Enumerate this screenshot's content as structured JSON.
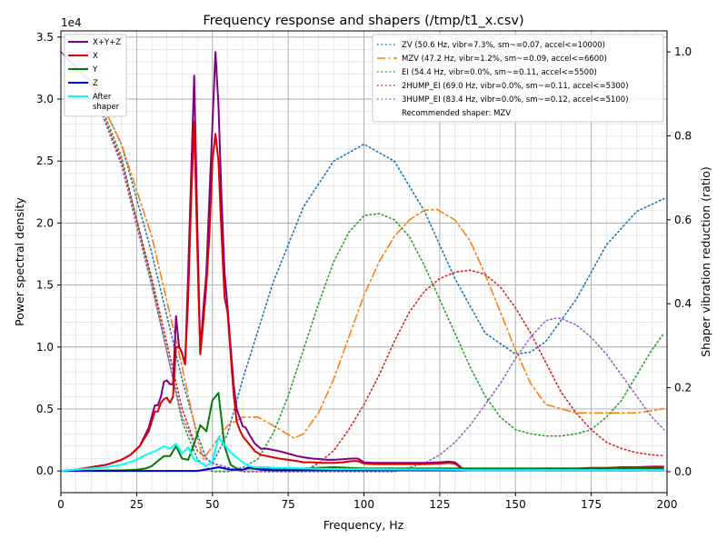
{
  "chart_data": {
    "type": "line",
    "title": "Frequency response and shapers (/tmp/t1_x.csv)",
    "xlabel": "Frequency, Hz",
    "ylabel": "Power spectral density",
    "y2label": "Shaper vibration reduction (ratio)",
    "y_offset_label": "1e4",
    "xlim": [
      0,
      200
    ],
    "ylim": [
      -1750,
      35500
    ],
    "y2lim": [
      -0.05,
      1.05
    ],
    "x_ticks": [
      0,
      25,
      50,
      75,
      100,
      125,
      150,
      175,
      200
    ],
    "y_ticks": [
      0,
      5000,
      10000,
      15000,
      20000,
      25000,
      30000,
      35000
    ],
    "y_tick_labels": [
      "0.0",
      "0.5",
      "1.0",
      "1.5",
      "2.0",
      "2.5",
      "3.0",
      "3.5"
    ],
    "y2_ticks": [
      0,
      0.2,
      0.4,
      0.6,
      0.8,
      1.0
    ],
    "y2_tick_labels": [
      "0.0",
      "0.2",
      "0.4",
      "0.6",
      "0.8",
      "1.0"
    ],
    "grid": true,
    "minor_grid": true,
    "legend_left_position": "top-left",
    "legend_right_position": "top-right",
    "psd_series": [
      {
        "name": "X+Y+Z",
        "color": "#800080",
        "width": 2,
        "legend": "X+Y+Z",
        "x": [
          0,
          5,
          10,
          15,
          20,
          23,
          26,
          29,
          31,
          32,
          33,
          34,
          35,
          36,
          37,
          38,
          39,
          40,
          41,
          42,
          43,
          44,
          45,
          46,
          47,
          48,
          49,
          50,
          51,
          52,
          53,
          54,
          55,
          56,
          57,
          58,
          59,
          60,
          61,
          62,
          64,
          66,
          68,
          70,
          72,
          75,
          78,
          80,
          83,
          86,
          88,
          90,
          93,
          96,
          98,
          100,
          103,
          106,
          110,
          115,
          120,
          125,
          128,
          130,
          133,
          135,
          140,
          145,
          150,
          155,
          160,
          165,
          170,
          175,
          180,
          185,
          190,
          195,
          199
        ],
        "y": [
          0,
          100,
          300,
          500,
          900,
          1300,
          2000,
          3500,
          5300,
          5300,
          6000,
          7200,
          7300,
          7000,
          7000,
          12500,
          10000,
          9500,
          8600,
          16000,
          24000,
          31900,
          20000,
          9500,
          13000,
          16000,
          22000,
          28000,
          33800,
          29500,
          22000,
          16000,
          13200,
          10000,
          7000,
          5000,
          4300,
          3600,
          3500,
          3000,
          2200,
          1800,
          1800,
          1700,
          1600,
          1400,
          1200,
          1100,
          1000,
          950,
          900,
          900,
          950,
          1000,
          1000,
          700,
          650,
          650,
          650,
          650,
          650,
          700,
          750,
          700,
          100,
          80,
          80,
          100,
          150,
          150,
          200,
          200,
          200,
          250,
          250,
          300,
          300,
          350,
          350
        ]
      },
      {
        "name": "X",
        "color": "#dd0000",
        "width": 2,
        "legend": "X",
        "x": [
          0,
          5,
          10,
          15,
          20,
          23,
          26,
          29,
          31,
          32,
          33,
          34,
          35,
          36,
          37,
          38,
          39,
          40,
          41,
          42,
          43,
          44,
          45,
          46,
          47,
          48,
          49,
          50,
          51,
          52,
          53,
          54,
          55,
          56,
          57,
          58,
          59,
          60,
          61,
          62,
          64,
          66,
          68,
          70,
          72,
          75,
          78,
          80,
          83,
          86,
          88,
          90,
          93,
          96,
          98,
          100,
          103,
          106,
          110,
          115,
          120,
          125,
          128,
          130,
          133,
          135,
          140,
          145,
          150,
          155,
          160,
          165,
          170,
          175,
          180,
          185,
          190,
          195,
          199
        ],
        "y": [
          0,
          100,
          300,
          500,
          900,
          1300,
          2000,
          3200,
          4800,
          4800,
          5500,
          5800,
          5900,
          5500,
          6000,
          10000,
          10000,
          9500,
          8600,
          14000,
          22000,
          28200,
          18000,
          9400,
          12000,
          15000,
          19000,
          25000,
          27200,
          25000,
          19000,
          14000,
          12800,
          9400,
          6200,
          4000,
          3300,
          2800,
          2500,
          2200,
          1600,
          1300,
          1200,
          1100,
          1000,
          900,
          800,
          700,
          700,
          650,
          650,
          650,
          700,
          800,
          800,
          600,
          550,
          550,
          550,
          550,
          550,
          600,
          650,
          600,
          80,
          70,
          70,
          90,
          130,
          130,
          180,
          180,
          180,
          220,
          220,
          280,
          280,
          320,
          320
        ]
      },
      {
        "name": "Y",
        "color": "#008000",
        "width": 2,
        "legend": "Y",
        "x": [
          0,
          10,
          20,
          25,
          28,
          30,
          32,
          34,
          36,
          38,
          40,
          42,
          44,
          46,
          48,
          50,
          52,
          54,
          56,
          58,
          60,
          62,
          65,
          70,
          80,
          90,
          100,
          110,
          120,
          130,
          140,
          160,
          180,
          199
        ],
        "y": [
          0,
          30,
          50,
          100,
          200,
          400,
          800,
          1200,
          1200,
          2000,
          1000,
          900,
          2200,
          3700,
          3200,
          5700,
          6300,
          2000,
          500,
          200,
          100,
          200,
          150,
          200,
          200,
          300,
          200,
          200,
          200,
          200,
          200,
          200,
          200,
          200
        ]
      },
      {
        "name": "Z",
        "color": "#0000cc",
        "width": 2,
        "legend": "Z",
        "x": [
          0,
          5,
          10,
          20,
          30,
          40,
          45,
          50,
          52,
          54,
          56,
          58,
          60,
          62,
          64,
          66,
          70,
          80,
          90,
          100,
          120,
          140,
          160,
          180,
          199
        ],
        "y": [
          0,
          0,
          0,
          0,
          0,
          0,
          0,
          200,
          300,
          200,
          100,
          100,
          100,
          300,
          200,
          100,
          50,
          50,
          50,
          50,
          50,
          50,
          50,
          50,
          50
        ]
      },
      {
        "name": "After shaper",
        "color": "#00ffff",
        "width": 2,
        "legend": "After\nshaper",
        "x": [
          0,
          5,
          10,
          15,
          20,
          25,
          28,
          30,
          32,
          34,
          36,
          38,
          40,
          42,
          44,
          46,
          48,
          50,
          52,
          54,
          56,
          58,
          60,
          62,
          64,
          66,
          68,
          70,
          75,
          80,
          90,
          100,
          110,
          120,
          130,
          135,
          140,
          150,
          160,
          170,
          180,
          190,
          199
        ],
        "y": [
          0,
          100,
          200,
          300,
          500,
          900,
          1300,
          1500,
          1700,
          2000,
          1800,
          2200,
          1400,
          1900,
          900,
          700,
          400,
          800,
          2700,
          2100,
          1500,
          1100,
          700,
          400,
          300,
          300,
          300,
          250,
          250,
          200,
          150,
          150,
          130,
          120,
          100,
          60,
          60,
          60,
          60,
          60,
          60,
          60,
          60
        ]
      }
    ],
    "shaper_series": [
      {
        "name": "ZV (50.6 Hz, vibr=7.3%, sm~=0.07, accel<=10000)",
        "color": "#1f77b4",
        "style": "dotted",
        "x": [
          0,
          10,
          20,
          30,
          40,
          45,
          48,
          50,
          55,
          60,
          70,
          80,
          90,
          100,
          110,
          120,
          130,
          140,
          150,
          155,
          160,
          170,
          180,
          190,
          199
        ],
        "y": [
          1.0,
          0.93,
          0.78,
          0.52,
          0.22,
          0.09,
          0.03,
          0.02,
          0.09,
          0.22,
          0.45,
          0.63,
          0.74,
          0.78,
          0.74,
          0.62,
          0.46,
          0.33,
          0.28,
          0.285,
          0.31,
          0.41,
          0.54,
          0.62,
          0.65
        ]
      },
      {
        "name": "MZV (47.2 Hz, vibr=1.2%, sm~=0.09, accel<=6600)",
        "color": "#ff7f0e",
        "style": "dashdot",
        "x": [
          0,
          10,
          20,
          30,
          40,
          45,
          47,
          50,
          55,
          60,
          65,
          70,
          77,
          80,
          85,
          90,
          95,
          100,
          105,
          110,
          115,
          120,
          124,
          130,
          135,
          140,
          145,
          150,
          155,
          160,
          165,
          170,
          175,
          180,
          185,
          190,
          195,
          199
        ],
        "y": [
          1.0,
          0.93,
          0.78,
          0.56,
          0.25,
          0.08,
          0.03,
          0.06,
          0.11,
          0.13,
          0.13,
          0.11,
          0.08,
          0.09,
          0.14,
          0.22,
          0.32,
          0.42,
          0.5,
          0.56,
          0.6,
          0.623,
          0.625,
          0.6,
          0.55,
          0.47,
          0.38,
          0.29,
          0.21,
          0.16,
          0.15,
          0.14,
          0.14,
          0.14,
          0.14,
          0.14,
          0.145,
          0.15
        ]
      },
      {
        "name": "EI (54.4 Hz, vibr=0.0%, sm~=0.11, accel<=5500)",
        "color": "#2ca02c",
        "style": "dotted",
        "x": [
          0,
          10,
          20,
          30,
          40,
          45,
          50,
          55,
          60,
          65,
          70,
          75,
          80,
          85,
          90,
          95,
          100,
          105,
          110,
          115,
          120,
          125,
          130,
          135,
          140,
          145,
          150,
          155,
          160,
          165,
          170,
          175,
          180,
          185,
          190,
          195,
          199
        ],
        "y": [
          1.0,
          0.93,
          0.75,
          0.45,
          0.12,
          0.03,
          0.0,
          0.0,
          0.01,
          0.03,
          0.09,
          0.18,
          0.29,
          0.4,
          0.5,
          0.57,
          0.61,
          0.615,
          0.6,
          0.56,
          0.49,
          0.41,
          0.33,
          0.25,
          0.18,
          0.13,
          0.1,
          0.09,
          0.085,
          0.085,
          0.09,
          0.1,
          0.13,
          0.17,
          0.23,
          0.29,
          0.33
        ]
      },
      {
        "name": "2HUMP_EI (69.0 Hz, vibr=0.0%, sm~=0.11, accel<=5300)",
        "color": "#d62728",
        "style": "dotted",
        "x": [
          0,
          10,
          20,
          30,
          40,
          45,
          50,
          55,
          60,
          70,
          80,
          85,
          90,
          95,
          100,
          105,
          110,
          115,
          120,
          125,
          130,
          135,
          140,
          145,
          150,
          155,
          160,
          165,
          170,
          175,
          180,
          185,
          190,
          195,
          199
        ],
        "y": [
          1.0,
          0.92,
          0.74,
          0.46,
          0.15,
          0.05,
          0.02,
          0.01,
          0.0,
          0.0,
          0.0,
          0.02,
          0.05,
          0.1,
          0.16,
          0.23,
          0.31,
          0.38,
          0.43,
          0.46,
          0.475,
          0.48,
          0.47,
          0.44,
          0.39,
          0.33,
          0.26,
          0.19,
          0.14,
          0.1,
          0.07,
          0.055,
          0.045,
          0.04,
          0.038
        ]
      },
      {
        "name": "3HUMP_EI (83.4 Hz, vibr=0.0%, sm~=0.12, accel<=5100)",
        "color": "#9467bd",
        "style": "dotted",
        "x": [
          0,
          10,
          20,
          30,
          40,
          45,
          50,
          60,
          70,
          80,
          90,
          100,
          110,
          115,
          120,
          125,
          130,
          135,
          140,
          145,
          150,
          155,
          160,
          163,
          165,
          170,
          175,
          180,
          185,
          190,
          195,
          199
        ],
        "y": [
          1.0,
          0.92,
          0.73,
          0.44,
          0.13,
          0.05,
          0.02,
          0.0,
          0.0,
          0.0,
          0.0,
          0.0,
          0.0,
          0.01,
          0.02,
          0.04,
          0.07,
          0.11,
          0.16,
          0.21,
          0.27,
          0.32,
          0.36,
          0.365,
          0.365,
          0.35,
          0.32,
          0.28,
          0.23,
          0.18,
          0.13,
          0.1
        ]
      }
    ],
    "recommended_text": "Recommended shaper: MZV"
  }
}
